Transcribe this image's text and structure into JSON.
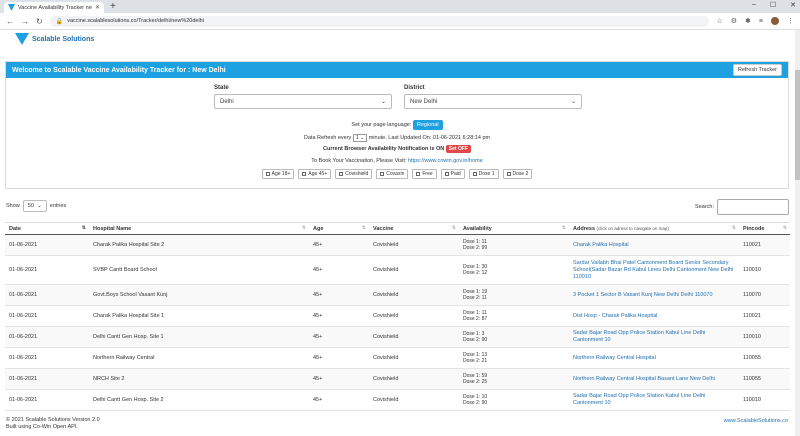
{
  "browser": {
    "tab_title": "Vaccine Availability Tracker new",
    "url": "vaccine.scalablesolutions.co/Tracker/delhi/new%20delhi"
  },
  "site": {
    "logo_text": "Scalable Solutions"
  },
  "panel": {
    "title": "Welcome to Scalable Vaccine Availability Tracker for : New Delhi",
    "refresh_label": "Refresh Tracker",
    "state_label": "State",
    "state_value": "Delhi",
    "district_label": "District",
    "district_value": "New Delhi",
    "lang_prefix": "Set your page language:",
    "lang_button": "Regional",
    "refresh_prefix": "Data Refresh every",
    "refresh_value": "1",
    "refresh_suffix": "minute. Last Updated On: 01-06-2021 6:28:14 pm",
    "notif_prefix": "Current Browser Availability Notification is ON",
    "notif_button": "Set OFF",
    "book_prefix": "To Book Your Vaccination, Please Visit:",
    "book_link": "https://www.cowin.gov.in/home",
    "filters": [
      "Age 18+",
      "Age 45+",
      "Covishield",
      "Covaxin",
      "Free",
      "Paid",
      "Dose 1",
      "Dose 2"
    ]
  },
  "table_controls": {
    "show_label": "Show",
    "show_value": "50",
    "entries_label": "entries",
    "search_label": "Search:"
  },
  "table": {
    "headers": [
      "Date",
      "Hospital Name",
      "Age",
      "Vaccine",
      "Availability",
      "Address",
      "Pincode"
    ],
    "address_hint": "(click on adress to navigate on map)",
    "rows": [
      {
        "date": "01-06-2021",
        "hospital": "Charak Palika Hospital Site 2",
        "age": "45+",
        "vaccine": "Covishield",
        "dose1": "Dose 1: 11",
        "dose2": "Dose 2: 99",
        "address": "Charak Palika Hospital",
        "pin": "110021"
      },
      {
        "date": "01-06-2021",
        "hospital": "SVBP Cantt Board School",
        "age": "45+",
        "vaccine": "Covishield",
        "dose1": "Dose 1: 30",
        "dose2": "Dose 2: 12",
        "address": "Sardar Vallabh Bhai Patel Cantonment Board Senior Secondary School(Sadar Bazar Rd Kabul Lines Delhi Cantonment New Delhi 110010",
        "pin": "110010"
      },
      {
        "date": "01-06-2021",
        "hospital": "Govt.Boys School Vasant Kunj",
        "age": "45+",
        "vaccine": "Covishield",
        "dose1": "Dose 1: 19",
        "dose2": "Dose 2: 11",
        "address": "3 Pocket 1 Sector B Vasant Kunj New Delhi Delhi 110070",
        "pin": "110070"
      },
      {
        "date": "01-06-2021",
        "hospital": "Charak Palika Hospital Site 1",
        "age": "45+",
        "vaccine": "Covishield",
        "dose1": "Dose 1: 11",
        "dose2": "Dose 2: 87",
        "address": "Dist Hosp - Charak Palika Hospital",
        "pin": "110021"
      },
      {
        "date": "01-06-2021",
        "hospital": "Delhi Cantt Gen Hosp. Site 1",
        "age": "45+",
        "vaccine": "Covishield",
        "dose1": "Dose 1: 3",
        "dose2": "Dose 2: 90",
        "address": "Sadar Bajar Road Opp Police Station Kabul Line Delhi Cantonment 10",
        "pin": "110010"
      },
      {
        "date": "01-06-2021",
        "hospital": "Northern Railway Central",
        "age": "45+",
        "vaccine": "Covishield",
        "dose1": "Dose 1: 13",
        "dose2": "Dose 2: 21",
        "address": "Northern Railway Central Hospital",
        "pin": "110055"
      },
      {
        "date": "01-06-2021",
        "hospital": "NRCH Site 2",
        "age": "45+",
        "vaccine": "Covishield",
        "dose1": "Dose 1: 59",
        "dose2": "Dose 2: 25",
        "address": "Northern Railway Central Hospital Basant Lane New Delhi",
        "pin": "110055"
      },
      {
        "date": "01-06-2021",
        "hospital": "Delhi Cantt Gen Hosp. Site 2",
        "age": "45+",
        "vaccine": "Covishield",
        "dose1": "Dose 1: 10",
        "dose2": "Dose 2: 90",
        "address": "Sadar Bajar Road Opp Police Station Kabul Line Delhi Cantonment 10",
        "pin": "110010"
      }
    ]
  },
  "footer": {
    "version": "© 2021 Scalable Solutions Version 2.0",
    "built": "Built using Co-Win Open API.",
    "site": "www.ScalableSolutions.co"
  }
}
